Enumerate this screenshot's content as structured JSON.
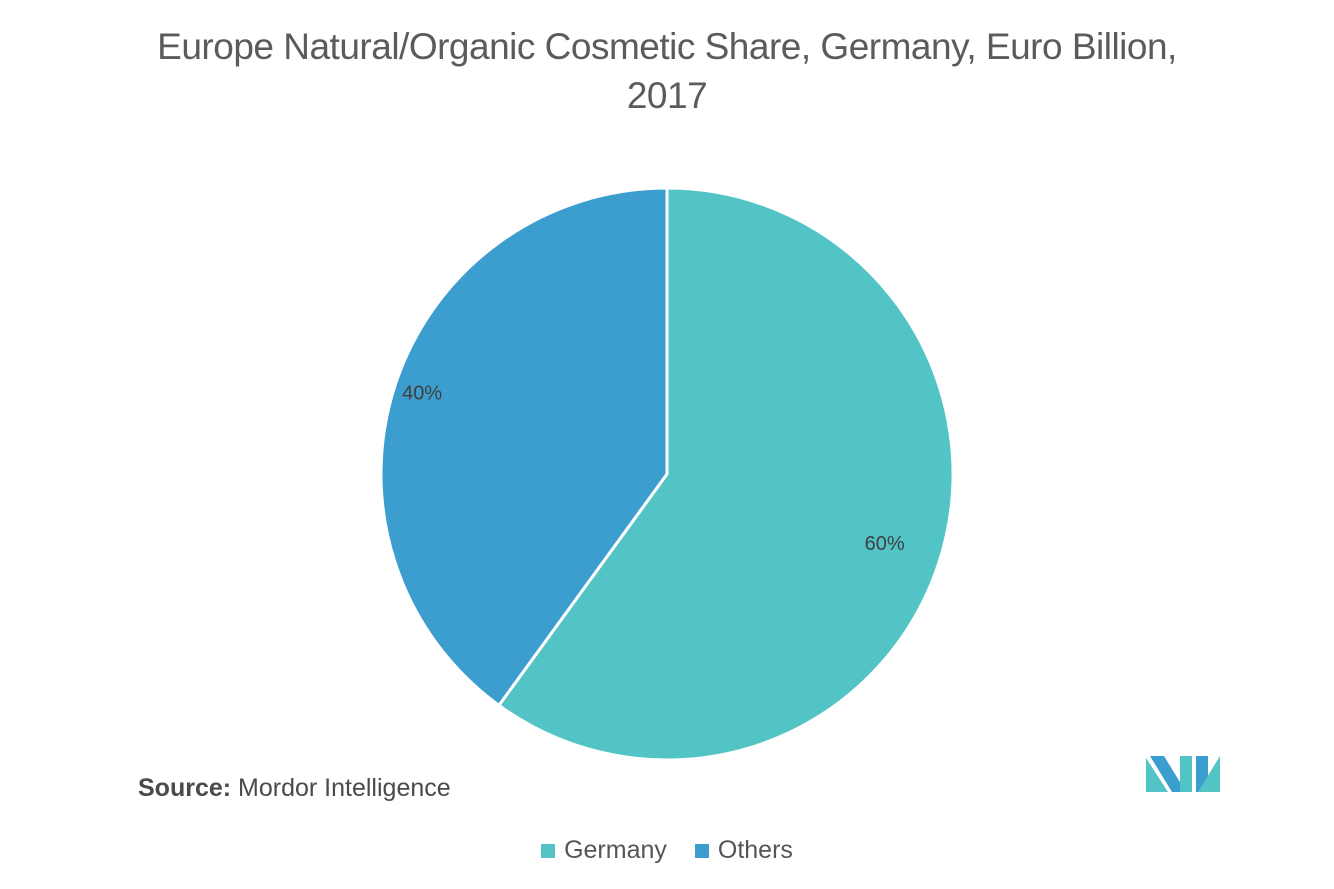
{
  "chart_data": {
    "type": "pie",
    "title": "Europe Natural/Organic Cosmetic Share, Germany, Euro Billion, 2017",
    "series": [
      {
        "name": "Germany",
        "value": 60,
        "label": "60%",
        "color": "#52c4c6"
      },
      {
        "name": "Others",
        "value": 40,
        "label": "40%",
        "color": "#3c9dcf"
      }
    ],
    "legend": "bottom-center"
  },
  "source": {
    "prefix": "Source:",
    "text": "Mordor Intelligence"
  },
  "logo": {
    "icon": "mordor-intelligence-logo",
    "colors": [
      "#52c4c6",
      "#3c9dcf"
    ]
  }
}
